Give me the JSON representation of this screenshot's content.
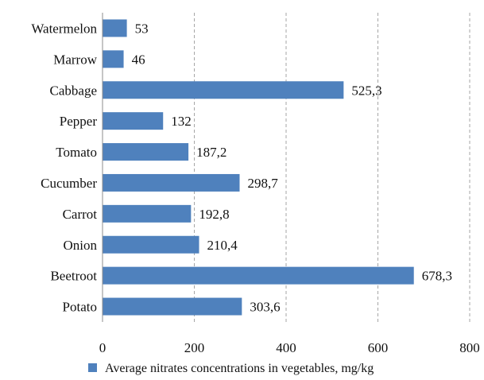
{
  "chart_data": {
    "type": "bar",
    "orientation": "horizontal",
    "categories": [
      "Watermelon",
      "Marrow",
      "Cabbage",
      "Pepper",
      "Tomato",
      "Cucumber",
      "Carrot",
      "Onion",
      "Beetroot",
      "Potato"
    ],
    "series": [
      {
        "name": "Average nitrates concentrations in vegetables, mg/kg",
        "values": [
          53,
          46,
          525.3,
          132,
          187.2,
          298.7,
          192.8,
          210.4,
          678.3,
          303.6
        ],
        "labels": [
          "53",
          "46",
          "525,3",
          "132",
          "187,2",
          "298,7",
          "192,8",
          "210,4",
          "678,3",
          "303,6"
        ],
        "color": "#4f81bd"
      }
    ],
    "xlim": [
      0,
      800
    ],
    "xticks": [
      0,
      200,
      400,
      600,
      800
    ],
    "xtick_labels": [
      "0",
      "200",
      "400",
      "600",
      "800"
    ],
    "grid": "vertical-dashed",
    "legend_position": "bottom"
  }
}
